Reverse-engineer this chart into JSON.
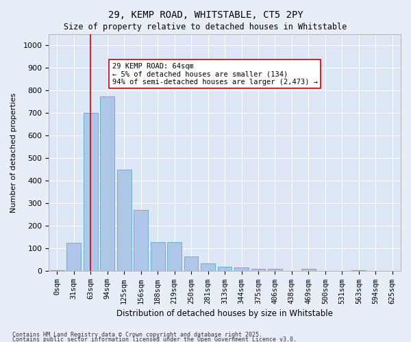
{
  "title1": "29, KEMP ROAD, WHITSTABLE, CT5 2PY",
  "title2": "Size of property relative to detached houses in Whitstable",
  "xlabel": "Distribution of detached houses by size in Whitstable",
  "ylabel": "Number of detached properties",
  "categories": [
    "0sqm",
    "31sqm",
    "63sqm",
    "94sqm",
    "125sqm",
    "156sqm",
    "188sqm",
    "219sqm",
    "250sqm",
    "281sqm",
    "313sqm",
    "344sqm",
    "375sqm",
    "406sqm",
    "438sqm",
    "469sqm",
    "500sqm",
    "531sqm",
    "563sqm",
    "594sqm",
    "625sqm"
  ],
  "values": [
    5,
    125,
    700,
    775,
    450,
    270,
    130,
    130,
    65,
    35,
    20,
    15,
    10,
    10,
    0,
    10,
    0,
    0,
    5,
    0,
    0
  ],
  "bar_color": "#aec6e8",
  "bar_edge_color": "#6aaed6",
  "vline_x": 2,
  "vline_color": "#cc0000",
  "annotation_text": "29 KEMP ROAD: 64sqm\n← 5% of detached houses are smaller (134)\n94% of semi-detached houses are larger (2,473) →",
  "annotation_box_color": "#ffffff",
  "annotation_box_edge": "#cc0000",
  "bg_color": "#e8eef7",
  "plot_bg_color": "#dce6f5",
  "grid_color": "#ffffff",
  "ylim": [
    0,
    1050
  ],
  "yticks": [
    0,
    100,
    200,
    300,
    400,
    500,
    600,
    700,
    800,
    900,
    1000
  ],
  "footer1": "Contains HM Land Registry data © Crown copyright and database right 2025.",
  "footer2": "Contains public sector information licensed under the Open Government Licence v3.0."
}
